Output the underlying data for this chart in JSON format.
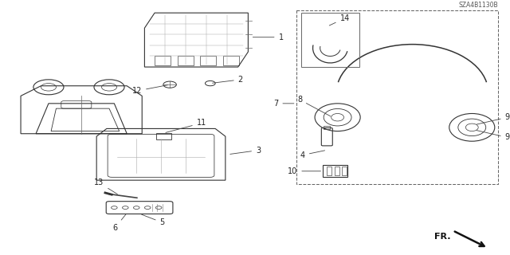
{
  "background_color": "#ffffff",
  "diagram_code": "SZA4B1130B",
  "figsize": [
    6.4,
    3.2
  ],
  "dpi": 100
}
